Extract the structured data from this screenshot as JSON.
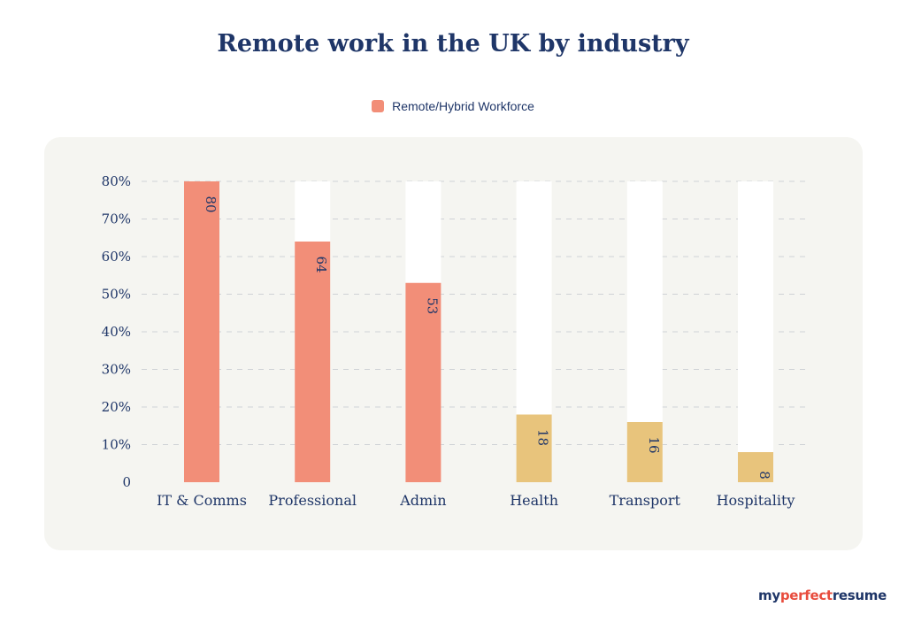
{
  "colors": {
    "primary": "#f28e78",
    "secondary": "#e8c47c",
    "track": "#ffffff",
    "text": "#1f3668",
    "grid": "#cfd2d6"
  },
  "chart_data": {
    "type": "bar",
    "title": "Remote work in the UK by industry",
    "legend": [
      "Remote/Hybrid Workforce"
    ],
    "legend_position": "top-center",
    "categories": [
      "IT & Comms",
      "Professional",
      "Admin",
      "Health",
      "Transport",
      "Hospitality"
    ],
    "values": [
      80,
      64,
      53,
      18,
      16,
      8
    ],
    "value_labels": [
      "80",
      "64",
      "53",
      "18",
      "16",
      "8"
    ],
    "bar_colors": [
      "#f28e78",
      "#f28e78",
      "#f28e78",
      "#e8c47c",
      "#e8c47c",
      "#e8c47c"
    ],
    "track_max": 80,
    "ylim": [
      0,
      80
    ],
    "yticks": [
      0,
      10,
      20,
      30,
      40,
      50,
      60,
      70,
      80
    ],
    "ytick_labels": [
      "0",
      "10%",
      "20%",
      "30%",
      "40%",
      "50%",
      "60%",
      "70%",
      "80%"
    ],
    "grid": true
  },
  "brand": {
    "part1": "my",
    "part2": "perfect",
    "part3": "resume"
  }
}
